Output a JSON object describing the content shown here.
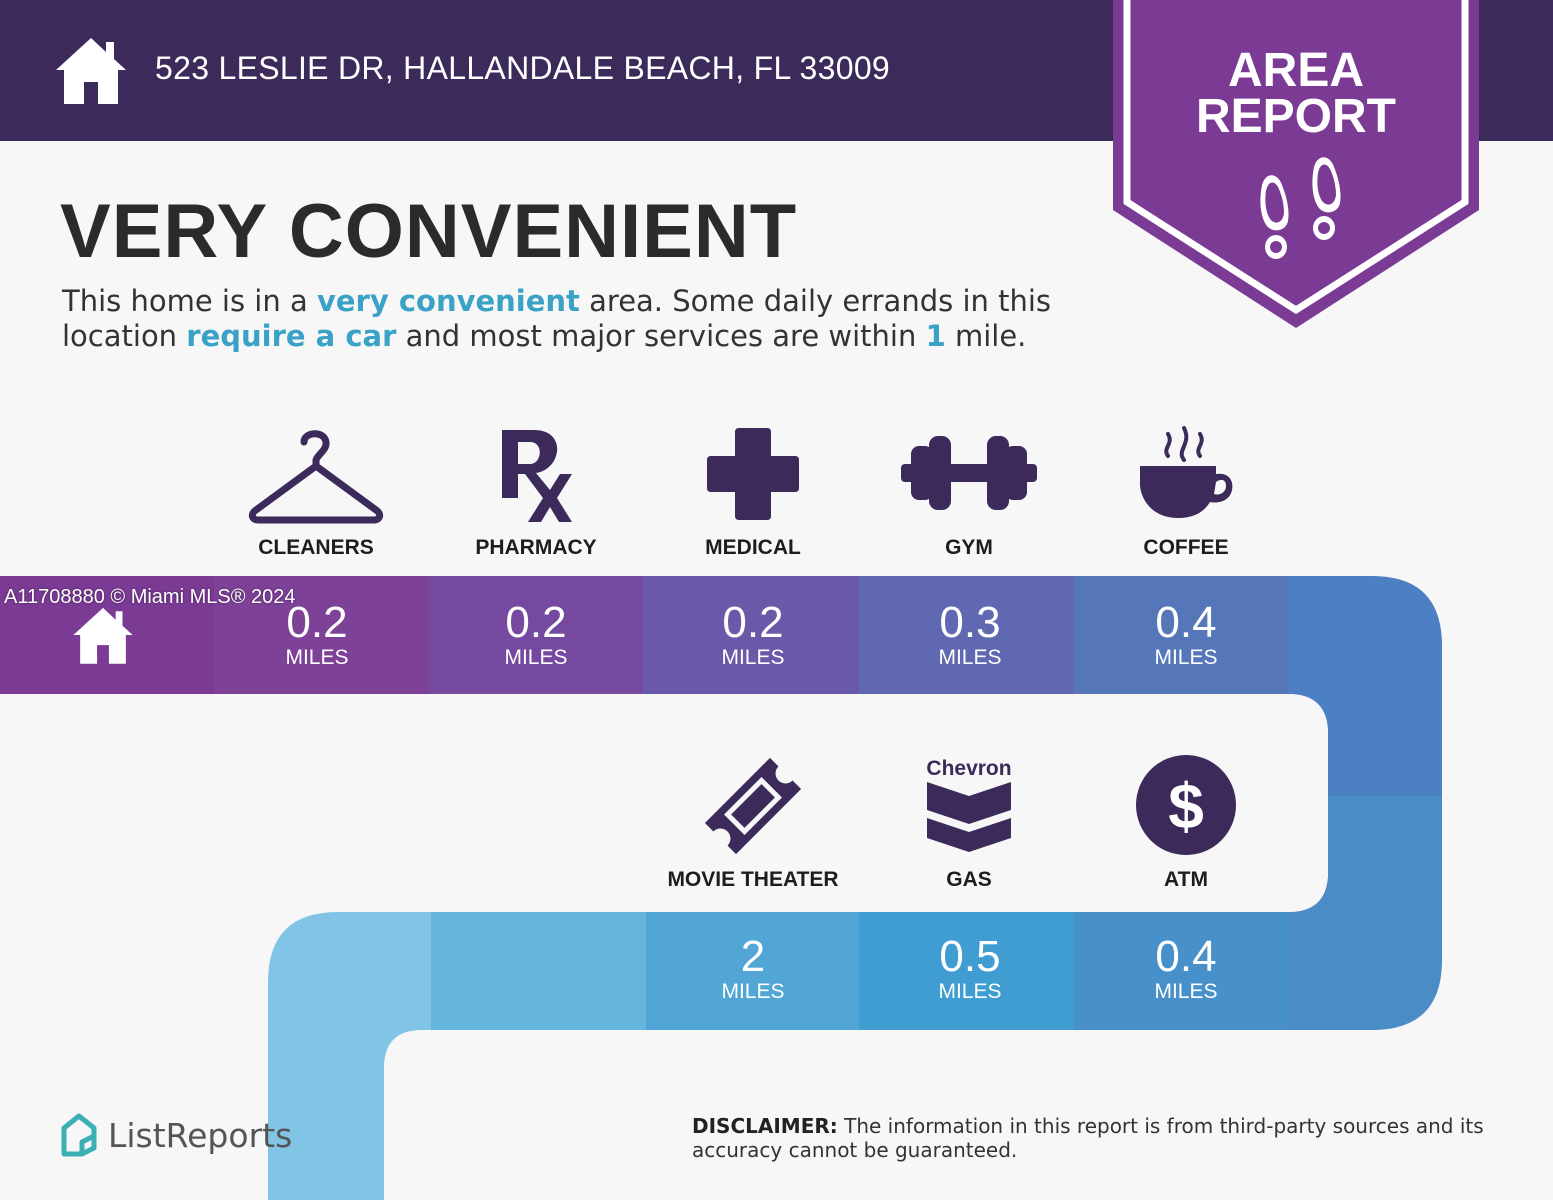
{
  "header": {
    "address": "523 LESLIE DR, HALLANDALE BEACH, FL 33009",
    "background": "#3c2a5b"
  },
  "badge": {
    "line1": "AREA",
    "line2": "REPORT",
    "color": "#7b3a94",
    "icon": "footprints-icon"
  },
  "headline": "VERY CONVENIENT",
  "description": {
    "part1": "This home is in a ",
    "hl1": "very convenient",
    "part2": " area. Some daily errands in this location ",
    "hl2": "require a car",
    "part3": " and most major services are within ",
    "hl3": "1",
    "part4": " mile.",
    "highlight_color": "#3aa2c6"
  },
  "amenities_row1": [
    {
      "label": "CLEANERS",
      "distance": "0.2",
      "unit": "MILES",
      "icon": "hanger-icon"
    },
    {
      "label": "PHARMACY",
      "distance": "0.2",
      "unit": "MILES",
      "icon": "rx-icon"
    },
    {
      "label": "MEDICAL",
      "distance": "0.2",
      "unit": "MILES",
      "icon": "medical-cross-icon"
    },
    {
      "label": "GYM",
      "distance": "0.3",
      "unit": "MILES",
      "icon": "dumbbell-icon"
    },
    {
      "label": "COFFEE",
      "distance": "0.4",
      "unit": "MILES",
      "icon": "coffee-cup-icon"
    }
  ],
  "amenities_row2": [
    {
      "label": "MOVIE THEATER",
      "distance": "2",
      "unit": "MILES",
      "icon": "ticket-icon"
    },
    {
      "label": "GAS",
      "distance": "0.5",
      "unit": "MILES",
      "icon": "chevron-logo-icon",
      "brand": "Chevron"
    },
    {
      "label": "ATM",
      "distance": "0.4",
      "unit": "MILES",
      "icon": "dollar-icon"
    }
  ],
  "watermark": "A11708880 © Miami MLS® 2024",
  "logo": {
    "name": "ListReports",
    "icon": "listreports-logo-icon"
  },
  "disclaimer": {
    "label": "DISCLAIMER:",
    "text": " The information in this report is from third-party sources and its accuracy cannot be guaranteed."
  },
  "colors": {
    "icon": "#3c2a5b",
    "road_purple": "#7b3a94",
    "road_blue": "#4a8cc6",
    "road_light": "#82c4e6"
  }
}
